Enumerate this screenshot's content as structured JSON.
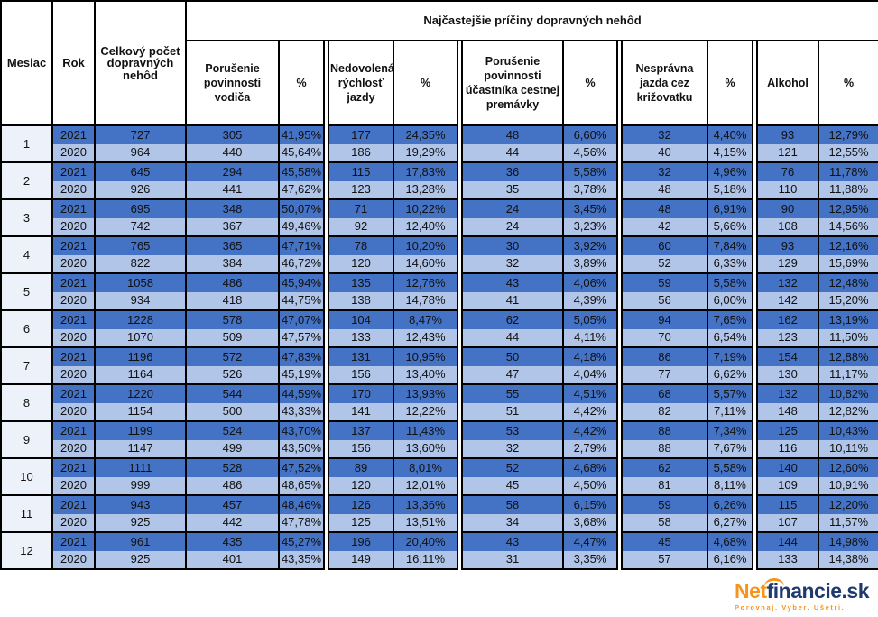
{
  "header": {
    "mesiac": "Mesiac",
    "rok": "Rok",
    "total": "Celkový počet dopravných nehôd",
    "causes_title": "Najčastejšie príčiny dopravných nehôd",
    "pct_label": "%",
    "causes": [
      {
        "label": "Porušenie povinnosti vodiča"
      },
      {
        "label": "Nedovolená rýchlosť jazdy"
      },
      {
        "label": "Porušenie povinnosti účastníka cestnej premávky"
      },
      {
        "label": "Nesprávna jazda cez križovatku"
      },
      {
        "label": "Alkohol"
      }
    ]
  },
  "chart_data": {
    "type": "table",
    "title": "Najčastejšie príčiny dopravných nehôd",
    "columns": [
      "Mesiac",
      "Rok",
      "Celkový počet dopravných nehôd",
      "Porušenie povinnosti vodiča",
      "%",
      "Nedovolená rýchlosť jazdy",
      "%",
      "Porušenie povinnosti účastníka cestnej premávky",
      "%",
      "Nesprávna jazda cez križovatku",
      "%",
      "Alkohol",
      "%"
    ],
    "rows": [
      [
        "1",
        "2021",
        "727",
        "305",
        "41,95%",
        "177",
        "24,35%",
        "48",
        "6,60%",
        "32",
        "4,40%",
        "93",
        "12,79%"
      ],
      [
        "1",
        "2020",
        "964",
        "440",
        "45,64%",
        "186",
        "19,29%",
        "44",
        "4,56%",
        "40",
        "4,15%",
        "121",
        "12,55%"
      ],
      [
        "2",
        "2021",
        "645",
        "294",
        "45,58%",
        "115",
        "17,83%",
        "36",
        "5,58%",
        "32",
        "4,96%",
        "76",
        "11,78%"
      ],
      [
        "2",
        "2020",
        "926",
        "441",
        "47,62%",
        "123",
        "13,28%",
        "35",
        "3,78%",
        "48",
        "5,18%",
        "110",
        "11,88%"
      ],
      [
        "3",
        "2021",
        "695",
        "348",
        "50,07%",
        "71",
        "10,22%",
        "24",
        "3,45%",
        "48",
        "6,91%",
        "90",
        "12,95%"
      ],
      [
        "3",
        "2020",
        "742",
        "367",
        "49,46%",
        "92",
        "12,40%",
        "24",
        "3,23%",
        "42",
        "5,66%",
        "108",
        "14,56%"
      ],
      [
        "4",
        "2021",
        "765",
        "365",
        "47,71%",
        "78",
        "10,20%",
        "30",
        "3,92%",
        "60",
        "7,84%",
        "93",
        "12,16%"
      ],
      [
        "4",
        "2020",
        "822",
        "384",
        "46,72%",
        "120",
        "14,60%",
        "32",
        "3,89%",
        "52",
        "6,33%",
        "129",
        "15,69%"
      ],
      [
        "5",
        "2021",
        "1058",
        "486",
        "45,94%",
        "135",
        "12,76%",
        "43",
        "4,06%",
        "59",
        "5,58%",
        "132",
        "12,48%"
      ],
      [
        "5",
        "2020",
        "934",
        "418",
        "44,75%",
        "138",
        "14,78%",
        "41",
        "4,39%",
        "56",
        "6,00%",
        "142",
        "15,20%"
      ],
      [
        "6",
        "2021",
        "1228",
        "578",
        "47,07%",
        "104",
        "8,47%",
        "62",
        "5,05%",
        "94",
        "7,65%",
        "162",
        "13,19%"
      ],
      [
        "6",
        "2020",
        "1070",
        "509",
        "47,57%",
        "133",
        "12,43%",
        "44",
        "4,11%",
        "70",
        "6,54%",
        "123",
        "11,50%"
      ],
      [
        "7",
        "2021",
        "1196",
        "572",
        "47,83%",
        "131",
        "10,95%",
        "50",
        "4,18%",
        "86",
        "7,19%",
        "154",
        "12,88%"
      ],
      [
        "7",
        "2020",
        "1164",
        "526",
        "45,19%",
        "156",
        "13,40%",
        "47",
        "4,04%",
        "77",
        "6,62%",
        "130",
        "11,17%"
      ],
      [
        "8",
        "2021",
        "1220",
        "544",
        "44,59%",
        "170",
        "13,93%",
        "55",
        "4,51%",
        "68",
        "5,57%",
        "132",
        "10,82%"
      ],
      [
        "8",
        "2020",
        "1154",
        "500",
        "43,33%",
        "141",
        "12,22%",
        "51",
        "4,42%",
        "82",
        "7,11%",
        "148",
        "12,82%"
      ],
      [
        "9",
        "2021",
        "1199",
        "524",
        "43,70%",
        "137",
        "11,43%",
        "53",
        "4,42%",
        "88",
        "7,34%",
        "125",
        "10,43%"
      ],
      [
        "9",
        "2020",
        "1147",
        "499",
        "43,50%",
        "156",
        "13,60%",
        "32",
        "2,79%",
        "88",
        "7,67%",
        "116",
        "10,11%"
      ],
      [
        "10",
        "2021",
        "1111",
        "528",
        "47,52%",
        "89",
        "8,01%",
        "52",
        "4,68%",
        "62",
        "5,58%",
        "140",
        "12,60%"
      ],
      [
        "10",
        "2020",
        "999",
        "486",
        "48,65%",
        "120",
        "12,01%",
        "45",
        "4,50%",
        "81",
        "8,11%",
        "109",
        "10,91%"
      ],
      [
        "11",
        "2021",
        "943",
        "457",
        "48,46%",
        "126",
        "13,36%",
        "58",
        "6,15%",
        "59",
        "6,26%",
        "115",
        "12,20%"
      ],
      [
        "11",
        "2020",
        "925",
        "442",
        "47,78%",
        "125",
        "13,51%",
        "34",
        "3,68%",
        "58",
        "6,27%",
        "107",
        "11,57%"
      ],
      [
        "12",
        "2021",
        "961",
        "435",
        "45,27%",
        "196",
        "20,40%",
        "43",
        "4,47%",
        "45",
        "4,68%",
        "144",
        "14,98%"
      ],
      [
        "12",
        "2020",
        "925",
        "401",
        "43,35%",
        "149",
        "16,11%",
        "31",
        "3,35%",
        "57",
        "6,16%",
        "133",
        "14,38%"
      ]
    ]
  },
  "footer": {
    "logo_net": "Net",
    "logo_rest": "financie.sk",
    "tagline": "Porovnaj. Vyber. Ušetri."
  },
  "colors": {
    "row_2021": "#4472C4",
    "row_2020": "#B1C5E8",
    "month_col": "#EDF1F9",
    "border": "#000000",
    "logo_orange": "#F7941D",
    "logo_navy": "#1E3A6E"
  }
}
